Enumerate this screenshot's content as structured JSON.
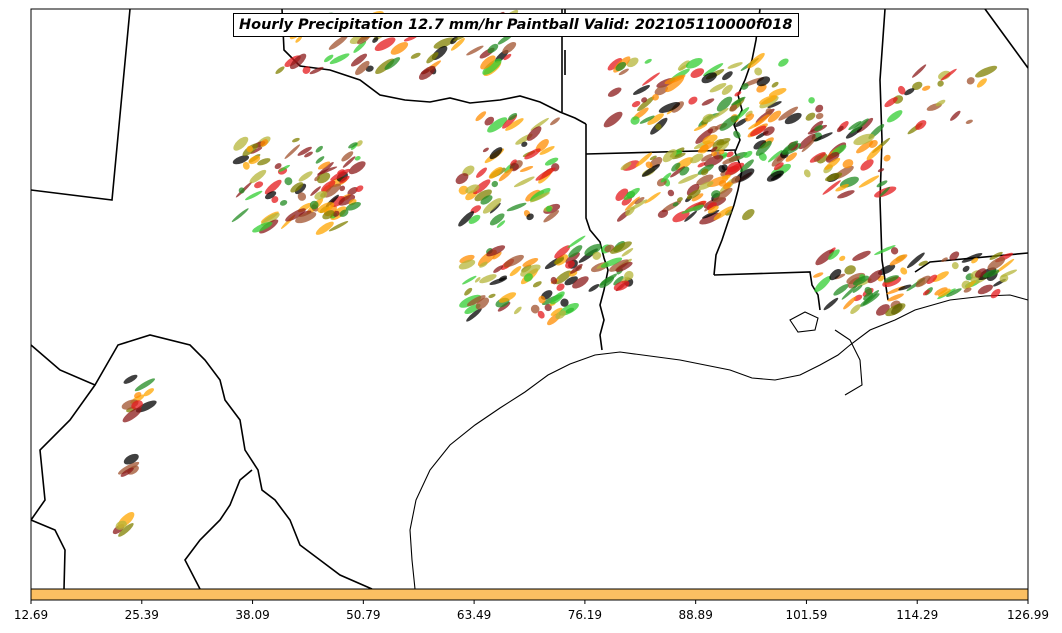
{
  "title": "Hourly Precipitation 12.7 mm/hr Paintball Valid: 202105110000f018",
  "colorbar": {
    "color": "#fbbf62",
    "tick_labels": [
      "12.69",
      "25.39",
      "38.09",
      "50.79",
      "63.49",
      "76.19",
      "88.89",
      "101.59",
      "114.29",
      "126.99"
    ]
  },
  "member_colors": [
    "#e41a1c",
    "#ff8c00",
    "#ffa500",
    "#228b22",
    "#32cd32",
    "#808000",
    "#8b1a1a",
    "#a0522d",
    "#b5b539",
    "#000000"
  ]
}
